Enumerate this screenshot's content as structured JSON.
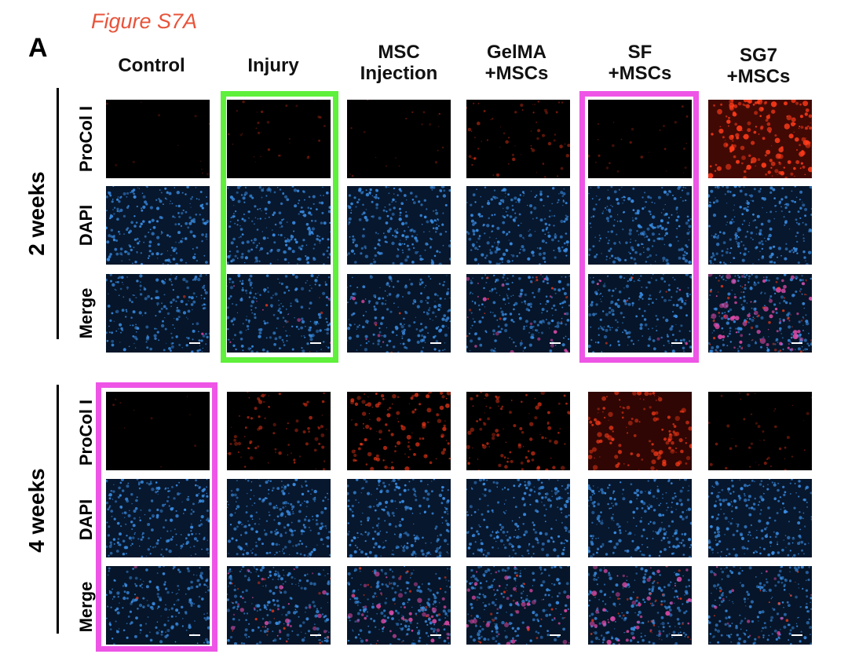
{
  "figure": {
    "title": "Figure S7A",
    "panel_letter": "A",
    "columns": [
      {
        "line1": "Control",
        "line2": ""
      },
      {
        "line1": "Injury",
        "line2": ""
      },
      {
        "line1": "MSC",
        "line2": "Injection"
      },
      {
        "line1": "GelMA",
        "line2": "+MSCs"
      },
      {
        "line1": "SF",
        "line2": "+MSCs"
      },
      {
        "line1": "SG7",
        "line2": "+MSCs"
      }
    ],
    "groups": [
      {
        "label": "2 weeks",
        "rows": [
          "ProCol I",
          "DAPI",
          "Merge"
        ]
      },
      {
        "label": "4 weeks",
        "rows": [
          "ProCol I",
          "DAPI",
          "Merge"
        ]
      }
    ],
    "highlights": [
      {
        "group": "2 weeks",
        "column": "Injury",
        "color": "#5ef03a"
      },
      {
        "group": "2 weeks",
        "column": "SF +MSCs",
        "color": "#ee55e6"
      },
      {
        "group": "4 weeks",
        "column": "Control",
        "color": "#ee55e6"
      }
    ],
    "channel_colors": {
      "procol": "#ff3b1a",
      "dapi": "#3a8ee6",
      "merge_overlap": "#e04aa8"
    },
    "procol_intensity": {
      "2 weeks": [
        0.02,
        0.12,
        0.08,
        0.3,
        0.1,
        0.9
      ],
      "4 weeks": [
        0.01,
        0.4,
        0.6,
        0.5,
        0.65,
        0.2
      ]
    }
  }
}
